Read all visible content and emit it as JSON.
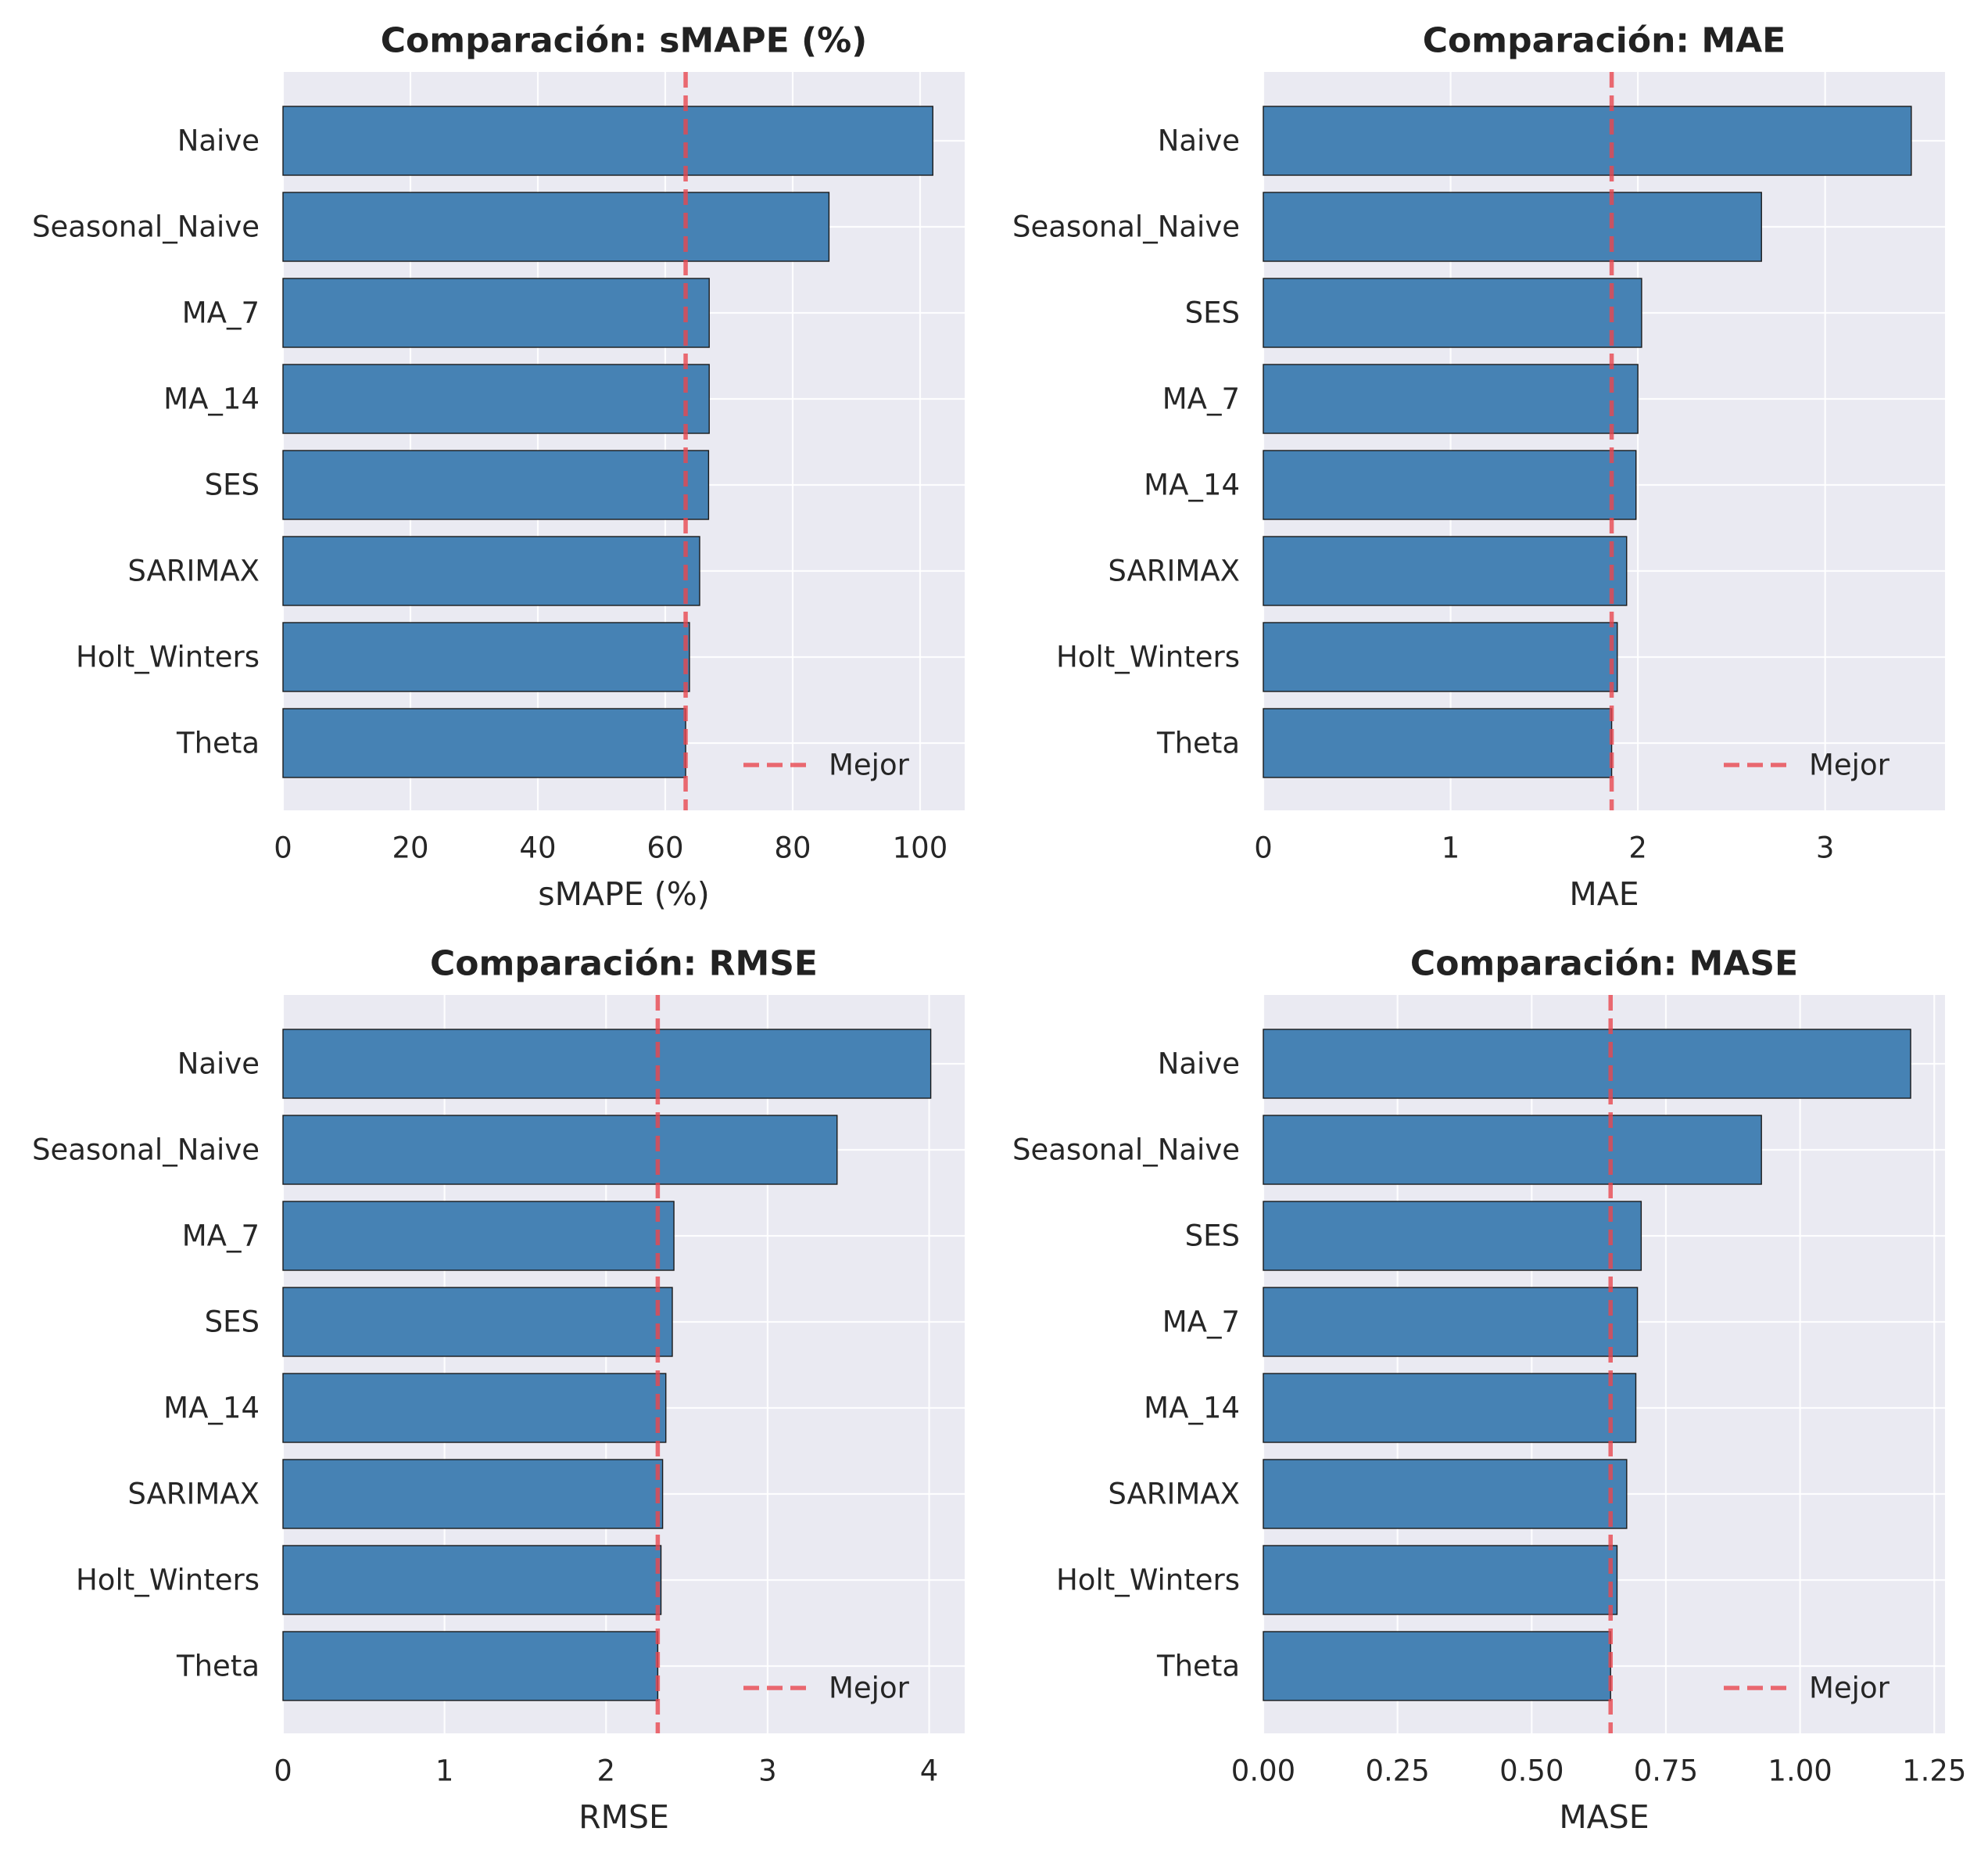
{
  "colors": {
    "figure_bg": "#ffffff",
    "plot_bg": "#eaeaf2",
    "grid": "#ffffff",
    "bar_fill": "#4682b4",
    "bar_edge": "#1a1a1a",
    "best_line": "#e8474f"
  },
  "chart_data": [
    {
      "type": "bar",
      "orientation": "horizontal",
      "title": "Comparación: sMAPE (%)",
      "xlabel": "sMAPE (%)",
      "categories": [
        "Naive",
        "Seasonal_Naive",
        "MA_7",
        "MA_14",
        "SES",
        "SARIMAX",
        "Holt_Winters",
        "Theta"
      ],
      "values": [
        102.0,
        85.7,
        66.9,
        66.9,
        66.8,
        65.4,
        63.8,
        63.2
      ],
      "xlim": [
        0,
        107
      ],
      "xticks": [
        0,
        20,
        40,
        60,
        80,
        100
      ],
      "xtick_labels": [
        "0",
        "20",
        "40",
        "60",
        "80",
        "100"
      ],
      "best_line": 63.2,
      "legend": {
        "label": "Mejor",
        "position": "lower-right"
      },
      "grid": true
    },
    {
      "type": "bar",
      "orientation": "horizontal",
      "title": "Comparación: MAE",
      "xlabel": "MAE",
      "categories": [
        "Naive",
        "Seasonal_Naive",
        "SES",
        "MA_7",
        "MA_14",
        "SARIMAX",
        "Holt_Winters",
        "Theta"
      ],
      "values": [
        3.46,
        2.66,
        2.02,
        2.0,
        1.99,
        1.94,
        1.89,
        1.86
      ],
      "xlim": [
        0,
        3.64
      ],
      "xticks": [
        0,
        1,
        2,
        3
      ],
      "xtick_labels": [
        "0",
        "1",
        "2",
        "3"
      ],
      "best_line": 1.86,
      "legend": {
        "label": "Mejor",
        "position": "lower-right"
      },
      "grid": true
    },
    {
      "type": "bar",
      "orientation": "horizontal",
      "title": "Comparación: RMSE",
      "xlabel": "RMSE",
      "categories": [
        "Naive",
        "Seasonal_Naive",
        "MA_7",
        "SES",
        "MA_14",
        "SARIMAX",
        "Holt_Winters",
        "Theta"
      ],
      "values": [
        4.01,
        3.43,
        2.42,
        2.41,
        2.37,
        2.35,
        2.34,
        2.32
      ],
      "xlim": [
        0,
        4.22
      ],
      "xticks": [
        0,
        1,
        2,
        3,
        4
      ],
      "xtick_labels": [
        "0",
        "1",
        "2",
        "3",
        "4"
      ],
      "best_line": 2.32,
      "legend": {
        "label": "Mejor",
        "position": "lower-right"
      },
      "grid": true
    },
    {
      "type": "bar",
      "orientation": "horizontal",
      "title": "Comparación: MASE",
      "xlabel": "MASE",
      "categories": [
        "Naive",
        "Seasonal_Naive",
        "SES",
        "MA_7",
        "MA_14",
        "SARIMAX",
        "Holt_Winters",
        "Theta"
      ],
      "values": [
        1.206,
        0.928,
        0.704,
        0.697,
        0.694,
        0.677,
        0.659,
        0.647
      ],
      "xlim": [
        0,
        1.27
      ],
      "xticks": [
        0,
        0.25,
        0.5,
        0.75,
        1.0,
        1.25
      ],
      "xtick_labels": [
        "0.00",
        "0.25",
        "0.50",
        "0.75",
        "1.00",
        "1.25"
      ],
      "best_line": 0.647,
      "legend": {
        "label": "Mejor",
        "position": "lower-right"
      },
      "grid": true
    }
  ]
}
